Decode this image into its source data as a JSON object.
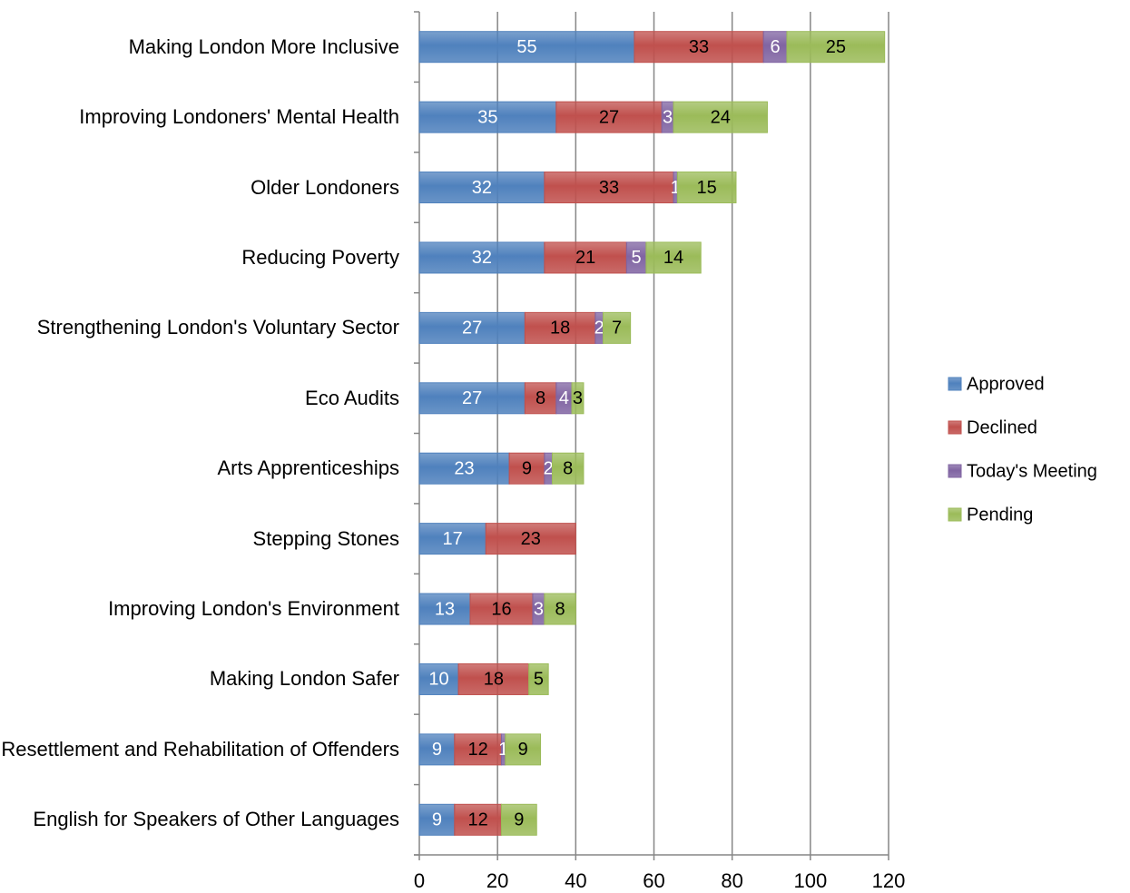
{
  "chart_data": {
    "type": "stacked-bar-horizontal",
    "categories": [
      "Making London More Inclusive",
      "Improving Londoners' Mental Health",
      "Older Londoners",
      "Reducing Poverty",
      "Strengthening London's Voluntary Sector",
      "Eco Audits",
      "Arts Apprenticeships",
      "Stepping Stones",
      "Improving London's Environment",
      "Making London Safer",
      "Resettlement and Rehabilitation of Offenders",
      "English for Speakers of Other Languages"
    ],
    "series": [
      {
        "name": "Approved",
        "color": "#4f81bd",
        "values": [
          55,
          35,
          32,
          32,
          27,
          27,
          23,
          17,
          13,
          10,
          9,
          9
        ]
      },
      {
        "name": "Declined",
        "color": "#c0504d",
        "values": [
          33,
          27,
          33,
          21,
          18,
          8,
          9,
          23,
          16,
          18,
          12,
          12
        ]
      },
      {
        "name": "Today's Meeting",
        "color": "#8064a2",
        "values": [
          6,
          3,
          1,
          5,
          2,
          4,
          2,
          null,
          3,
          null,
          1,
          null
        ]
      },
      {
        "name": "Pending",
        "color": "#9bbb59",
        "values": [
          25,
          24,
          15,
          14,
          7,
          3,
          8,
          null,
          8,
          5,
          9,
          9
        ]
      }
    ],
    "xlim": [
      0,
      120
    ],
    "xticks": [
      0,
      20,
      40,
      60,
      80,
      100,
      120
    ],
    "grid": true,
    "legend": "right"
  }
}
